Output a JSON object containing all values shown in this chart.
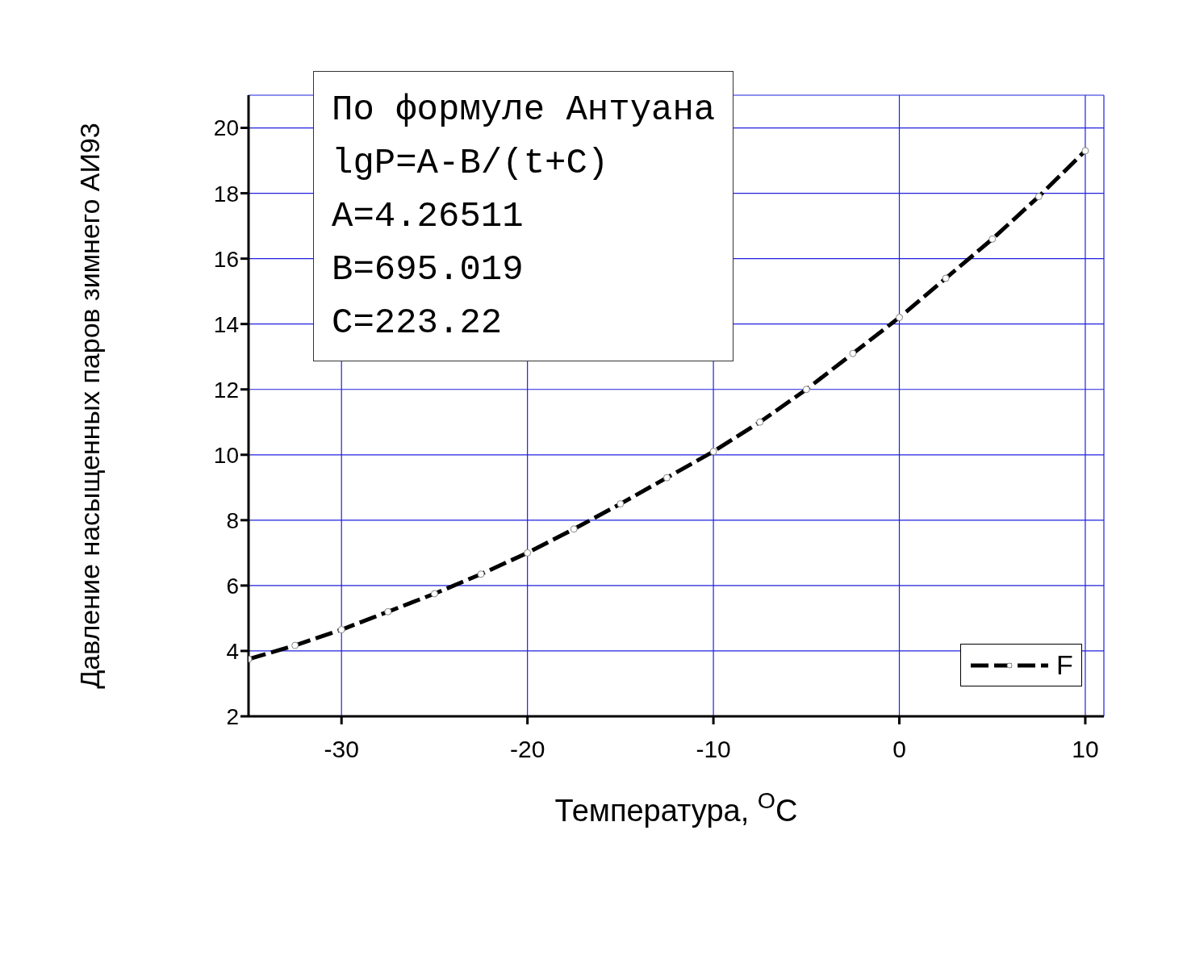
{
  "chart_data": {
    "type": "line",
    "xlabel": "Температура, $^{O}$C",
    "ylabel": "Давление насыщенных паров зимнего АИ93",
    "annotations": [
      "По формуле Антуана",
      "lgP=A-B/(t+C)",
      "A=4.26511",
      "B=695.019",
      "C=223.22"
    ],
    "x": [
      -35,
      -32.5,
      -30,
      -27.5,
      -25,
      -22.5,
      -20,
      -17.5,
      -15,
      -12.5,
      -10,
      -7.5,
      -5,
      -2.5,
      0,
      2.5,
      5,
      7.5,
      10
    ],
    "series": [
      {
        "name": "F",
        "color": "#000000",
        "values": [
          3.75,
          4.17,
          4.65,
          5.2,
          5.75,
          6.35,
          7.0,
          7.73,
          8.5,
          9.3,
          10.1,
          11.0,
          12.0,
          13.1,
          14.2,
          15.4,
          16.6,
          17.9,
          19.3
        ]
      }
    ],
    "xlim": [
      -35,
      11
    ],
    "xticks": [
      -30,
      -20,
      -10,
      0,
      10
    ],
    "ylim": [
      2,
      21
    ],
    "yticks": [
      2,
      4,
      6,
      8,
      10,
      12,
      14,
      16,
      18,
      20
    ],
    "grid": true,
    "legend": "bottom right",
    "marker": "circle",
    "line_style": "dashed"
  }
}
